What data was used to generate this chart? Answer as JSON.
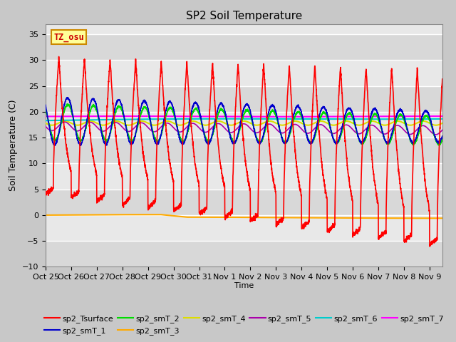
{
  "title": "SP2 Soil Temperature",
  "ylabel": "Soil Temperature (C)",
  "xlabel": "Time",
  "xlim_days": [
    0,
    15.5
  ],
  "ylim": [
    -10,
    37
  ],
  "yticks": [
    -10,
    -5,
    0,
    5,
    10,
    15,
    20,
    25,
    30,
    35
  ],
  "xtick_labels": [
    "Oct 25",
    "Oct 26",
    "Oct 27",
    "Oct 28",
    "Oct 29",
    "Oct 30",
    "Oct 31",
    "Nov 1",
    "Nov 2",
    "Nov 3",
    "Nov 4",
    "Nov 5",
    "Nov 6",
    "Nov 7",
    "Nov 8",
    "Nov 9"
  ],
  "xtick_positions": [
    0,
    1,
    2,
    3,
    4,
    5,
    6,
    7,
    8,
    9,
    10,
    11,
    12,
    13,
    14,
    15
  ],
  "bg_color": "#e8e8e8",
  "plot_bg_color": "#e8e8e8",
  "tz_label": "TZ_osu",
  "series": {
    "sp2_Tsurface": {
      "color": "#ff0000",
      "lw": 1.2
    },
    "sp2_smT_1": {
      "color": "#0000cc",
      "lw": 1.2
    },
    "sp2_smT_2": {
      "color": "#00dd00",
      "lw": 1.2
    },
    "sp2_smT_3": {
      "color": "#ffaa00",
      "lw": 1.5
    },
    "sp2_smT_4": {
      "color": "#dddd00",
      "lw": 1.5
    },
    "sp2_smT_5": {
      "color": "#aa00aa",
      "lw": 1.2
    },
    "sp2_smT_6": {
      "color": "#00cccc",
      "lw": 1.5
    },
    "sp2_smT_7": {
      "color": "#ff00ff",
      "lw": 1.5
    }
  }
}
